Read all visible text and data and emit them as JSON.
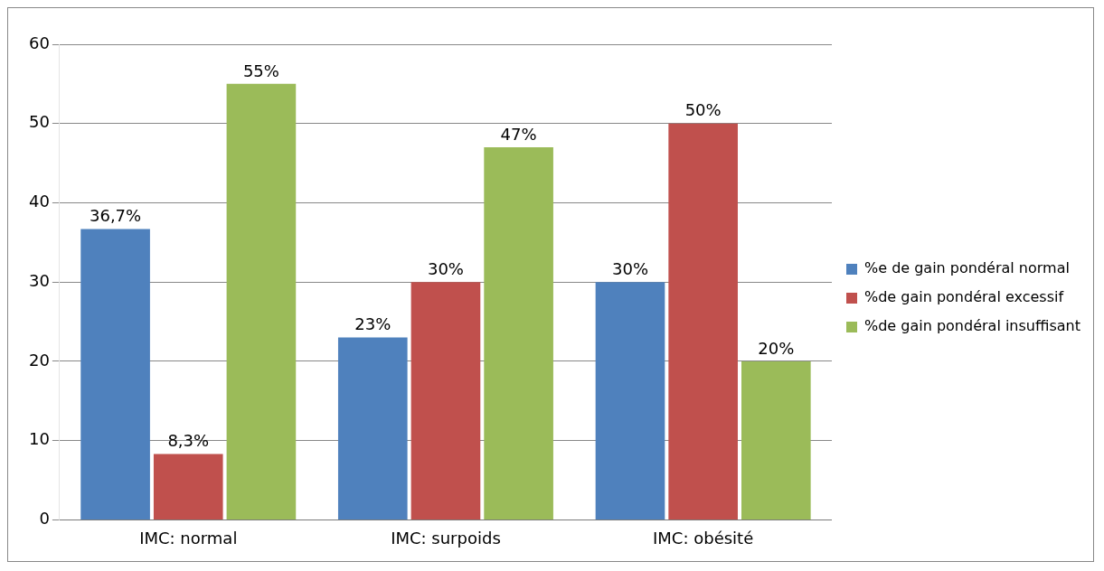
{
  "chart_data": {
    "type": "bar",
    "categories": [
      "IMC: normal",
      "IMC: surpoids",
      "IMC: obésité"
    ],
    "series": [
      {
        "name": "%e de gain pondéral normal",
        "color": "#4f81bd",
        "values": [
          36.7,
          23,
          30
        ],
        "value_labels": [
          "36,7%",
          "23%",
          "30%"
        ]
      },
      {
        "name": "%de gain pondéral excessif",
        "color": "#c0504d",
        "values": [
          8.3,
          30,
          50
        ],
        "value_labels": [
          "8,3%",
          "30%",
          "50%"
        ]
      },
      {
        "name": "%de gain pondéral insuffisant",
        "color": "#9bbb59",
        "values": [
          55,
          47,
          20
        ],
        "value_labels": [
          "55%",
          "47%",
          "20%"
        ]
      }
    ],
    "ylim": [
      0,
      60
    ],
    "yticks": [
      0,
      10,
      20,
      30,
      40,
      50,
      60
    ],
    "grid": "y",
    "legend": "right"
  }
}
